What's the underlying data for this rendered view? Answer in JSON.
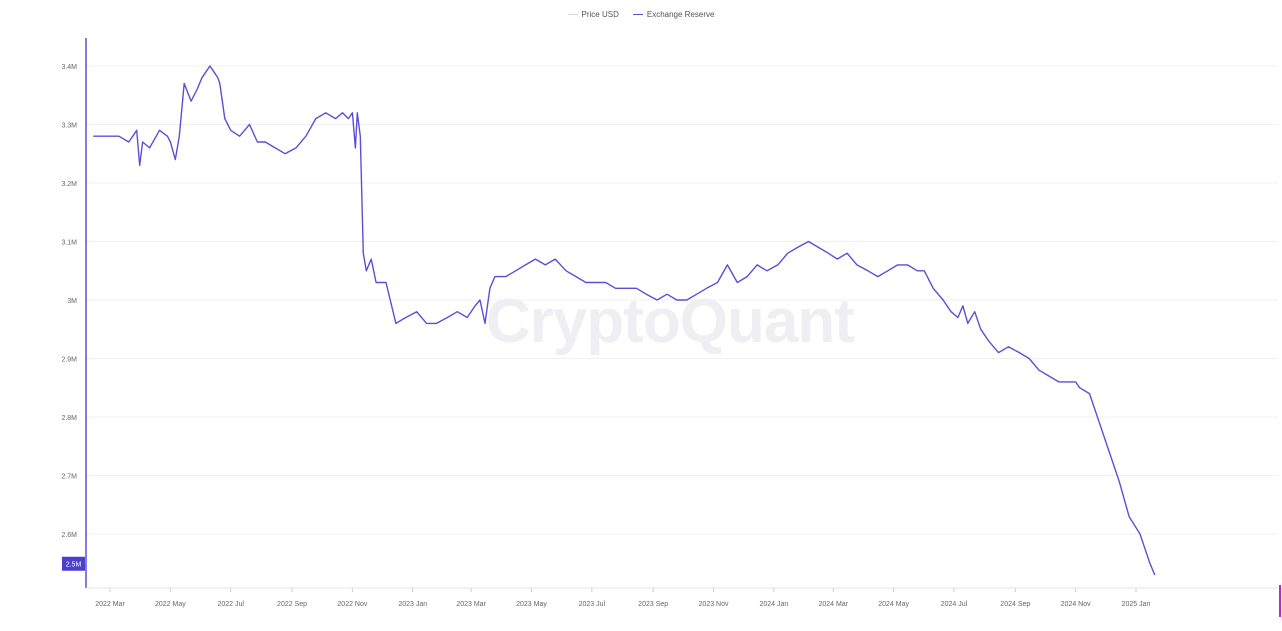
{
  "legend": [
    {
      "label": "Price USD",
      "color": "#d9d9d9"
    },
    {
      "label": "Exchange Reserve",
      "color": "#5b4fd6"
    }
  ],
  "watermark": "CryptoQuant",
  "current_value_label": "2.5M",
  "colors": {
    "line": "#5b4fd6",
    "axis": "#5b4fd6",
    "grid": "#f0f0f0",
    "badge": "#4b3fd1",
    "tick": "#666666"
  },
  "chart_data": {
    "type": "line",
    "title": "",
    "xlabel": "",
    "ylabel": "",
    "ylim": [
      2.55,
      3.42
    ],
    "y_ticks": [
      {
        "value": 3.4,
        "label": "3.4M"
      },
      {
        "value": 3.3,
        "label": "3.3M"
      },
      {
        "value": 3.2,
        "label": "3.2M"
      },
      {
        "value": 3.1,
        "label": "3.1M"
      },
      {
        "value": 3.0,
        "label": "3M"
      },
      {
        "value": 2.9,
        "label": "2.9M"
      },
      {
        "value": 2.8,
        "label": "2.8M"
      },
      {
        "value": 2.7,
        "label": "2.7M"
      },
      {
        "value": 2.6,
        "label": "2.6M"
      }
    ],
    "x_ticks": [
      "2022 Mar",
      "2022 May",
      "2022 Jul",
      "2022 Sep",
      "2022 Nov",
      "2023 Jan",
      "2023 Mar",
      "2023 May",
      "2023 Jul",
      "2023 Sep",
      "2023 Nov",
      "2024 Jan",
      "2024 Mar",
      "2024 May",
      "2024 Jul",
      "2024 Sep",
      "2024 Nov",
      "2025 Jan"
    ],
    "series": [
      {
        "name": "Exchange Reserve",
        "x": [
          "2022-02-12",
          "2022-02-20",
          "2022-03-01",
          "2022-03-10",
          "2022-03-20",
          "2022-03-28",
          "2022-03-31",
          "2022-04-03",
          "2022-04-10",
          "2022-04-20",
          "2022-04-28",
          "2022-05-01",
          "2022-05-06",
          "2022-05-10",
          "2022-05-15",
          "2022-05-22",
          "2022-05-28",
          "2022-06-02",
          "2022-06-06",
          "2022-06-10",
          "2022-06-14",
          "2022-06-18",
          "2022-06-20",
          "2022-06-25",
          "2022-07-01",
          "2022-07-10",
          "2022-07-20",
          "2022-07-28",
          "2022-08-05",
          "2022-08-15",
          "2022-08-25",
          "2022-09-05",
          "2022-09-15",
          "2022-09-25",
          "2022-10-05",
          "2022-10-15",
          "2022-10-22",
          "2022-10-28",
          "2022-11-01",
          "2022-11-04",
          "2022-11-06",
          "2022-11-09",
          "2022-11-12",
          "2022-11-15",
          "2022-11-20",
          "2022-11-25",
          "2022-12-05",
          "2022-12-15",
          "2022-12-25",
          "2023-01-05",
          "2023-01-15",
          "2023-01-25",
          "2023-02-05",
          "2023-02-15",
          "2023-02-25",
          "2023-03-05",
          "2023-03-10",
          "2023-03-15",
          "2023-03-20",
          "2023-03-25",
          "2023-04-05",
          "2023-04-15",
          "2023-04-25",
          "2023-05-05",
          "2023-05-15",
          "2023-05-25",
          "2023-06-05",
          "2023-06-15",
          "2023-06-25",
          "2023-07-05",
          "2023-07-15",
          "2023-07-25",
          "2023-08-05",
          "2023-08-15",
          "2023-08-25",
          "2023-09-05",
          "2023-09-15",
          "2023-09-25",
          "2023-10-05",
          "2023-10-15",
          "2023-10-25",
          "2023-11-05",
          "2023-11-15",
          "2023-11-25",
          "2023-12-05",
          "2023-12-15",
          "2023-12-25",
          "2024-01-05",
          "2024-01-15",
          "2024-01-25",
          "2024-02-05",
          "2024-02-15",
          "2024-02-25",
          "2024-03-05",
          "2024-03-15",
          "2024-03-25",
          "2024-04-05",
          "2024-04-15",
          "2024-04-25",
          "2024-05-05",
          "2024-05-15",
          "2024-05-25",
          "2024-06-01",
          "2024-06-10",
          "2024-06-20",
          "2024-06-28",
          "2024-07-05",
          "2024-07-10",
          "2024-07-15",
          "2024-07-22",
          "2024-07-28",
          "2024-08-05",
          "2024-08-15",
          "2024-08-25",
          "2024-09-05",
          "2024-09-15",
          "2024-09-25",
          "2024-10-05",
          "2024-10-15",
          "2024-10-25",
          "2024-11-01",
          "2024-11-05",
          "2024-11-15",
          "2024-11-25",
          "2024-12-05",
          "2024-12-15",
          "2024-12-25",
          "2025-01-05",
          "2025-01-15",
          "2025-01-20"
        ],
        "values": [
          3.28,
          3.28,
          3.28,
          3.28,
          3.27,
          3.29,
          3.23,
          3.27,
          3.26,
          3.29,
          3.28,
          3.27,
          3.24,
          3.28,
          3.37,
          3.34,
          3.36,
          3.38,
          3.39,
          3.4,
          3.39,
          3.38,
          3.37,
          3.31,
          3.29,
          3.28,
          3.3,
          3.27,
          3.27,
          3.26,
          3.25,
          3.26,
          3.28,
          3.31,
          3.32,
          3.31,
          3.32,
          3.31,
          3.32,
          3.26,
          3.32,
          3.28,
          3.08,
          3.05,
          3.07,
          3.03,
          3.03,
          2.96,
          2.97,
          2.98,
          2.96,
          2.96,
          2.97,
          2.98,
          2.97,
          2.99,
          3.0,
          2.96,
          3.02,
          3.04,
          3.04,
          3.05,
          3.06,
          3.07,
          3.06,
          3.07,
          3.05,
          3.04,
          3.03,
          3.03,
          3.03,
          3.02,
          3.02,
          3.02,
          3.01,
          3.0,
          3.01,
          3.0,
          3.0,
          3.01,
          3.02,
          3.03,
          3.06,
          3.03,
          3.04,
          3.06,
          3.05,
          3.06,
          3.08,
          3.09,
          3.1,
          3.09,
          3.08,
          3.07,
          3.08,
          3.06,
          3.05,
          3.04,
          3.05,
          3.06,
          3.06,
          3.05,
          3.05,
          3.02,
          3.0,
          2.98,
          2.97,
          2.99,
          2.96,
          2.98,
          2.95,
          2.93,
          2.91,
          2.92,
          2.91,
          2.9,
          2.88,
          2.87,
          2.86,
          2.86,
          2.86,
          2.85,
          2.84,
          2.79,
          2.74,
          2.69,
          2.63,
          2.6,
          2.55,
          2.53
        ],
        "color": "#5b4fd6"
      }
    ],
    "grid": true,
    "legend_position": "top-center"
  }
}
